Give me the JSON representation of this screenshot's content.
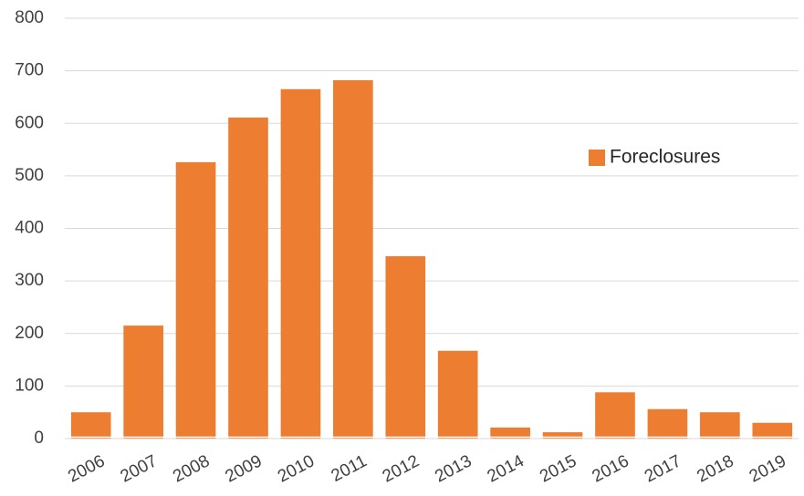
{
  "chart_data": {
    "type": "bar",
    "categories": [
      "2006",
      "2007",
      "2008",
      "2009",
      "2010",
      "2011",
      "2012",
      "2013",
      "2014",
      "2015",
      "2016",
      "2017",
      "2018",
      "2019"
    ],
    "series": [
      {
        "name": "Foreclosures",
        "color": "#ed7d31",
        "values": [
          50,
          215,
          526,
          611,
          665,
          682,
          347,
          167,
          21,
          12,
          88,
          56,
          50,
          30
        ]
      }
    ],
    "ylim": [
      0,
      800
    ],
    "yticks": [
      0,
      100,
      200,
      300,
      400,
      500,
      600,
      700,
      800
    ],
    "grid": true,
    "legend": "right"
  }
}
